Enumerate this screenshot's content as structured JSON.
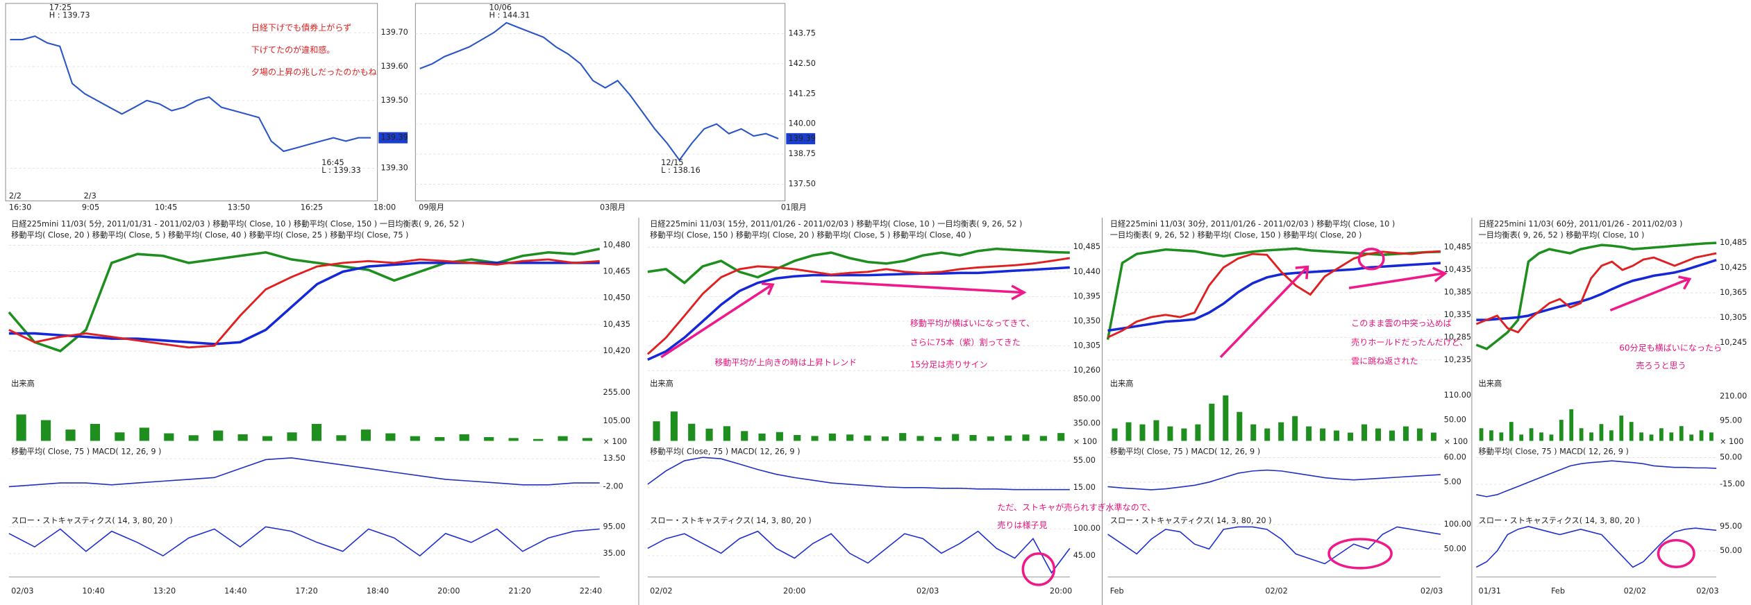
{
  "top_charts": [
    {
      "ylim": [
        139.21,
        139.78
      ],
      "yticks": [
        {
          "value": 139.7,
          "label": "139.70"
        },
        {
          "value": 139.6,
          "label": "139.60"
        },
        {
          "value": 139.5,
          "label": "139.50"
        },
        {
          "value": 139.3,
          "label": "139.30"
        }
      ],
      "last": {
        "value": 139.39,
        "label": "139.39"
      },
      "xlabels": [
        "16:30",
        "9:05",
        "10:45",
        "13:50",
        "16:25",
        "18:00"
      ],
      "session_labels": [
        "2/2",
        "2/3"
      ],
      "marks": [
        "17:25",
        "H : 139.73",
        "16:45",
        "L : 139.33"
      ],
      "notes": [
        "日経下げでも債券上がらず",
        "下げてたのが違和感。",
        "夕場の上昇の兆しだったのかもね"
      ],
      "price": [
        139.68,
        139.68,
        139.69,
        139.67,
        139.66,
        139.55,
        139.52,
        139.5,
        139.48,
        139.46,
        139.48,
        139.5,
        139.49,
        139.47,
        139.48,
        139.5,
        139.51,
        139.48,
        139.47,
        139.46,
        139.45,
        139.38,
        139.35,
        139.36,
        139.37,
        139.38,
        139.39,
        139.38,
        139.39,
        139.39
      ]
    },
    {
      "ylim": [
        136.9,
        144.91
      ],
      "yticks": [
        {
          "value": 143.75,
          "label": "143.75"
        },
        {
          "value": 142.5,
          "label": "142.50"
        },
        {
          "value": 141.25,
          "label": "141.25"
        },
        {
          "value": 140,
          "label": "140.00"
        },
        {
          "value": 138.75,
          "label": "138.75"
        },
        {
          "value": 137.5,
          "label": "137.50"
        }
      ],
      "last": {
        "value": 139.39,
        "label": "139.39"
      },
      "xlabels": [
        "09限月",
        "03限月",
        "01限月"
      ],
      "session_labels": [],
      "marks": [
        "10/06",
        "H : 144.31",
        "12/15",
        "L : 138.16"
      ],
      "notes": [],
      "price": [
        142.3,
        142.5,
        142.8,
        143,
        143.2,
        143.5,
        143.8,
        144.2,
        144,
        143.8,
        143.6,
        143.2,
        142.9,
        142.5,
        141.8,
        141.5,
        141.8,
        141.2,
        140.5,
        139.8,
        139.2,
        138.5,
        139.2,
        139.8,
        140,
        139.6,
        139.8,
        139.5,
        139.6,
        139.39
      ]
    }
  ],
  "panels": [
    {
      "header": [
        "日経225mini 11/03( 5分, 2011/01/31 - 2011/02/03 )   移動平均( Close, 10 )   移動平均( Close, 150 )   一目均衡表( 9, 26, 52 )",
        "移動平均( Close, 20 )   移動平均( Close, 5 )   移動平均( Close, 40 )   移動平均( Close, 25 )   移動平均( Close, 75 )"
      ],
      "price_ylim": [
        10407,
        10483
      ],
      "price_ticks": [
        {
          "value": 10480,
          "label": "10,480"
        },
        {
          "value": 10465,
          "label": "10,465"
        },
        {
          "value": 10450,
          "label": "10,450"
        },
        {
          "value": 10435,
          "label": "10,435"
        },
        {
          "value": 10420,
          "label": "10,420"
        }
      ],
      "price": [
        10432,
        10425,
        10428,
        10430,
        10428,
        10426,
        10424,
        10422,
        10423,
        10440,
        10455,
        10462,
        10468,
        10470,
        10471,
        10470,
        10472,
        10471,
        10470,
        10469,
        10471,
        10472,
        10470,
        10471
      ],
      "ma": [
        10430,
        10430,
        10429,
        10428,
        10427,
        10427,
        10426,
        10425,
        10424,
        10425,
        10432,
        10445,
        10458,
        10465,
        10468,
        10469,
        10470,
        10470,
        10470,
        10470,
        10470,
        10470,
        10470,
        10470
      ],
      "lagging": [
        10442,
        10425,
        10420,
        10432,
        10470,
        10475,
        10474,
        10470,
        10472,
        10474,
        10476,
        10472,
        10470,
        10468,
        10466,
        10460,
        10465,
        10470,
        10472,
        10470,
        10474,
        10476,
        10475,
        10478
      ],
      "volume_title": "出来高",
      "volume_ylim": [
        0,
        296
      ],
      "volume_ticks": [
        {
          "value": 255,
          "label": "255.00"
        },
        {
          "value": 105,
          "label": "105.00"
        }
      ],
      "volume_unit": "× 100",
      "volume": [
        140,
        110,
        60,
        90,
        45,
        70,
        40,
        30,
        55,
        35,
        25,
        45,
        90,
        30,
        60,
        40,
        25,
        20,
        35,
        20,
        15,
        10,
        25,
        15
      ],
      "macd_title": "移動平均( Close, 75 )   MACD( 12, 26, 9 )",
      "macd_ylim": [
        -13.8,
        17.2
      ],
      "macd_ticks": [
        {
          "value": 13.5,
          "label": "13.50"
        },
        {
          "value": -2,
          "label": "-2.00"
        }
      ],
      "macd": [
        -2,
        -1,
        0,
        0,
        -1,
        0,
        1,
        2,
        3,
        8,
        13,
        14,
        12,
        10,
        8,
        6,
        4,
        2,
        1,
        0,
        -1,
        -1,
        0,
        0
      ],
      "stoch_title": "スロー・ストキャスティクス( 14, 3, 80, 20 )",
      "stoch_ylim": [
        -12.5,
        120
      ],
      "stoch_ticks": [
        {
          "value": 95,
          "label": "95.00"
        },
        {
          "value": 35,
          "label": "35.00"
        }
      ],
      "stoch": [
        80,
        50,
        90,
        40,
        85,
        60,
        30,
        70,
        90,
        50,
        95,
        85,
        60,
        40,
        90,
        70,
        30,
        80,
        60,
        90,
        40,
        70,
        85,
        90
      ],
      "xlabels": [
        "02/03",
        "10:40",
        "13:20",
        "14:40",
        "17:20",
        "18:40",
        "20:00",
        "21:20",
        "22:40"
      ]
    },
    {
      "header": [
        "日経225mini 11/03( 15分, 2011/01/26 - 2011/02/03 )   移動平均( Close, 10 )   一目均衡表( 9, 26, 52 )",
        "移動平均( Close, 150 )   移動平均( Close, 20 )   移動平均( Close, 5 )   移動平均( Close, 40 )"
      ],
      "price_ylim": [
        10254,
        10498
      ],
      "price_ticks": [
        {
          "value": 10485,
          "label": "10,485"
        },
        {
          "value": 10440,
          "label": "10,440"
        },
        {
          "value": 10395,
          "label": "10,395"
        },
        {
          "value": 10350,
          "label": "10,350"
        },
        {
          "value": 10305,
          "label": "10,305"
        },
        {
          "value": 10260,
          "label": "10,260"
        }
      ],
      "price": [
        10290,
        10320,
        10360,
        10400,
        10430,
        10445,
        10450,
        10448,
        10445,
        10440,
        10435,
        10438,
        10440,
        10445,
        10440,
        10438,
        10440,
        10445,
        10448,
        10450,
        10452,
        10455,
        10460,
        10465
      ],
      "ma": [
        10280,
        10295,
        10320,
        10350,
        10380,
        10405,
        10420,
        10428,
        10432,
        10434,
        10434,
        10434,
        10434,
        10435,
        10436,
        10437,
        10437,
        10438,
        10438,
        10440,
        10442,
        10444,
        10446,
        10448
      ],
      "lagging": [
        10440,
        10445,
        10420,
        10450,
        10460,
        10440,
        10430,
        10445,
        10460,
        10470,
        10475,
        10465,
        10458,
        10455,
        10460,
        10470,
        10475,
        10470,
        10478,
        10482,
        10480,
        10478,
        10476,
        10475
      ],
      "volume_title": "出来高",
      "volume_ylim": [
        0,
        1140
      ],
      "volume_ticks": [
        {
          "value": 850,
          "label": "850.00"
        },
        {
          "value": 350,
          "label": "350.00"
        }
      ],
      "volume_unit": "× 100",
      "volume": [
        400,
        600,
        350,
        250,
        300,
        200,
        150,
        180,
        120,
        100,
        150,
        130,
        110,
        90,
        160,
        100,
        80,
        140,
        120,
        90,
        110,
        130,
        100,
        160
      ],
      "macd_title": "移動平均( Close, 75 )   MACD( 12, 26, 9 )",
      "macd_ylim": [
        -15,
        68
      ],
      "macd_ticks": [
        {
          "value": 55,
          "label": "55.00"
        },
        {
          "value": 15,
          "label": "15.00"
        }
      ],
      "macd": [
        20,
        40,
        55,
        60,
        58,
        50,
        42,
        35,
        30,
        26,
        22,
        20,
        18,
        16,
        15,
        15,
        14,
        14,
        13,
        13,
        12,
        12,
        12,
        12
      ],
      "stoch_title": "スロー・ストキャスティクス( 14, 3, 80, 20 )",
      "stoch_ylim": [
        6,
        127
      ],
      "stoch_ticks": [
        {
          "value": 100,
          "label": "100.00"
        },
        {
          "value": 45,
          "label": "45.00"
        }
      ],
      "stoch": [
        60,
        80,
        90,
        70,
        50,
        80,
        95,
        60,
        40,
        70,
        90,
        50,
        30,
        60,
        90,
        80,
        50,
        70,
        95,
        60,
        40,
        80,
        10,
        60
      ],
      "xlabels": [
        "02/02",
        "20:00",
        "02/03",
        "20:00"
      ]
    },
    {
      "header": [
        "日経225mini 11/03( 30分, 2011/01/26 - 2011/02/03 )   移動平均( Close, 10 )",
        "一目均衡表( 9, 26, 52 )   移動平均( Close, 150 )   移動平均( Close, 20 )"
      ],
      "price_ylim": [
        10204,
        10501
      ],
      "price_ticks": [
        {
          "value": 10485,
          "label": "10,485"
        },
        {
          "value": 10435,
          "label": "10,435"
        },
        {
          "value": 10385,
          "label": "10,385"
        },
        {
          "value": 10335,
          "label": "10,335"
        },
        {
          "value": 10285,
          "label": "10,285"
        },
        {
          "value": 10235,
          "label": "10,235"
        }
      ],
      "price": [
        10285,
        10300,
        10320,
        10330,
        10335,
        10330,
        10340,
        10400,
        10440,
        10460,
        10470,
        10468,
        10430,
        10400,
        10380,
        10420,
        10440,
        10460,
        10470,
        10475,
        10472,
        10470,
        10474,
        10476
      ],
      "ma": [
        10300,
        10305,
        10310,
        10315,
        10320,
        10322,
        10325,
        10340,
        10360,
        10385,
        10405,
        10418,
        10425,
        10428,
        10430,
        10432,
        10434,
        10436,
        10440,
        10442,
        10444,
        10446,
        10448,
        10450
      ],
      "lagging": [
        10280,
        10450,
        10470,
        10475,
        10480,
        10478,
        10476,
        10470,
        10465,
        10470,
        10475,
        10478,
        10480,
        10482,
        10478,
        10476,
        10474,
        10472,
        10470,
        10468,
        10470,
        10472,
        10474,
        10475
      ],
      "volume_title": "出来高",
      "volume_ylim": [
        0,
        135
      ],
      "volume_ticks": [
        {
          "value": 110,
          "label": "110.00"
        },
        {
          "value": 50,
          "label": "50.00"
        }
      ],
      "volume_unit": "× 100",
      "volume": [
        30,
        45,
        40,
        50,
        35,
        30,
        40,
        90,
        110,
        70,
        40,
        30,
        45,
        60,
        35,
        30,
        25,
        20,
        40,
        30,
        25,
        35,
        30,
        20
      ],
      "macd_title": "移動平均( Close, 75 )   MACD( 12, 26, 9 )",
      "macd_ylim": [
        -52.5,
        72.5
      ],
      "macd_ticks": [
        {
          "value": 60,
          "label": "60.00"
        },
        {
          "value": 5,
          "label": "5.00"
        }
      ],
      "macd": [
        -5,
        -8,
        -10,
        -12,
        -10,
        -6,
        -2,
        5,
        15,
        25,
        30,
        32,
        30,
        25,
        20,
        15,
        12,
        10,
        12,
        14,
        16,
        18,
        20,
        22
      ],
      "stoch_title": "スロー・ストキャスティクス( 14, 3, 80, 20 )",
      "stoch_ylim": [
        -2.5,
        118
      ],
      "stoch_ticks": [
        {
          "value": 100,
          "label": "100.00"
        },
        {
          "value": 50,
          "label": "50.00"
        }
      ],
      "stoch": [
        80,
        60,
        40,
        70,
        90,
        85,
        60,
        50,
        90,
        95,
        95,
        90,
        70,
        40,
        30,
        20,
        40,
        60,
        50,
        80,
        95,
        90,
        85,
        80
      ],
      "xlabels": [
        "Feb",
        "02/02",
        "02/03"
      ]
    },
    {
      "header": [
        "日経225mini 11/03( 60分, 2011/01/26 - 2011/02/03 )",
        "一目均衡表( 9, 26, 52 )   移動平均( Close, 10 )"
      ],
      "price_ylim": [
        10170,
        10492
      ],
      "price_ticks": [
        {
          "value": 10485,
          "label": "10,485"
        },
        {
          "value": 10425,
          "label": "10,425"
        },
        {
          "value": 10365,
          "label": "10,365"
        },
        {
          "value": 10305,
          "label": "10,305"
        },
        {
          "value": 10245,
          "label": "10,245"
        }
      ],
      "price": [
        10290,
        10300,
        10310,
        10280,
        10270,
        10300,
        10320,
        10340,
        10350,
        10330,
        10340,
        10400,
        10430,
        10440,
        10420,
        10430,
        10445,
        10450,
        10440,
        10430,
        10440,
        10450,
        10455,
        10460
      ],
      "ma": [
        10300,
        10300,
        10302,
        10304,
        10306,
        10310,
        10318,
        10325,
        10332,
        10338,
        10344,
        10352,
        10362,
        10374,
        10385,
        10394,
        10400,
        10406,
        10410,
        10414,
        10420,
        10428,
        10436,
        10444
      ],
      "lagging": [
        10240,
        10230,
        10250,
        10270,
        10300,
        10440,
        10460,
        10470,
        10465,
        10460,
        10470,
        10475,
        10480,
        10478,
        10475,
        10470,
        10472,
        10474,
        10476,
        10478,
        10480,
        10482,
        10484,
        10485
      ],
      "volume_title": "出来高",
      "volume_ylim": [
        0,
        265
      ],
      "volume_ticks": [
        {
          "value": 210,
          "label": "210.00"
        },
        {
          "value": 95,
          "label": "95.00"
        }
      ],
      "volume_unit": "× 100",
      "volume": [
        60,
        50,
        40,
        90,
        30,
        60,
        40,
        30,
        100,
        150,
        60,
        40,
        80,
        50,
        120,
        90,
        40,
        30,
        60,
        40,
        70,
        30,
        50,
        40
      ],
      "macd_title": "移動平均( Close, 75 )   MACD( 12, 26, 9 )",
      "macd_ylim": [
        -72,
        63.5
      ],
      "macd_ticks": [
        {
          "value": 50,
          "label": "50.00"
        },
        {
          "value": -15,
          "label": "-15.00"
        }
      ],
      "macd": [
        -40,
        -45,
        -40,
        -30,
        -20,
        -10,
        0,
        10,
        20,
        30,
        35,
        38,
        40,
        42,
        40,
        38,
        35,
        30,
        28,
        26,
        26,
        25,
        25,
        24
      ],
      "stoch_title": "スロー・ストキャスティクス( 14, 3, 80, 20 )",
      "stoch_ylim": [
        6,
        115
      ],
      "stoch_ticks": [
        {
          "value": 95,
          "label": "95.00"
        },
        {
          "value": 50,
          "label": "50.00"
        }
      ],
      "stoch": [
        20,
        30,
        50,
        80,
        90,
        95,
        90,
        85,
        80,
        85,
        90,
        85,
        80,
        60,
        40,
        20,
        30,
        50,
        70,
        85,
        90,
        92,
        90,
        88
      ],
      "xlabels": [
        "01/31",
        "Feb",
        "02/02",
        "02/03"
      ]
    }
  ],
  "notes": [
    "移動平均が上向きの時は上昇トレンド",
    "移動平均が横ばいになってきて、",
    "さらに75本（紫）割ってきた",
    "15分足は売りサイン",
    "ただ、ストキャが売られすぎ水準なので、",
    "売りは様子見",
    "このまま雲の中突っ込めば",
    "売りホールドだったんだけど、",
    "雲に跳ね返された",
    "60分足も横ばいになったら",
    "売ろうと思う"
  ]
}
